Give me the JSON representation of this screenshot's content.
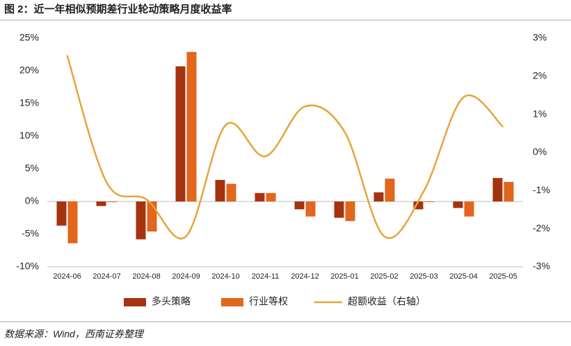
{
  "chart_data": {
    "type": "bar",
    "title": "图 2：近一年相似预期差行业轮动策略月度收益率",
    "categories": [
      "2024-06",
      "2024-07",
      "2024-08",
      "2024-09",
      "2024-10",
      "2024-11",
      "2024-12",
      "2025-01",
      "2025-02",
      "2025-03",
      "2025-04",
      "2025-05"
    ],
    "series": [
      {
        "name": "多头策略",
        "color": "#A5330F",
        "values": [
          -3.7,
          -0.7,
          -5.8,
          20.7,
          3.3,
          1.3,
          -1.2,
          -2.5,
          1.4,
          -1.2,
          -1.0,
          3.6
        ]
      },
      {
        "name": "行业等权",
        "color": "#E2661C",
        "values": [
          -6.4,
          -0.1,
          -4.6,
          22.9,
          2.7,
          1.3,
          -2.3,
          -3.0,
          3.5,
          -0.1,
          -2.3,
          3.0
        ]
      },
      {
        "name": "超额收益（右轴）",
        "color": "#E8A33A",
        "type": "line",
        "axis": "y2",
        "values": [
          2.55,
          -0.79,
          -1.23,
          -2.2,
          0.72,
          -0.1,
          1.21,
          0.54,
          -2.2,
          -1.01,
          1.45,
          0.67
        ]
      }
    ],
    "ylim": [
      -10,
      25
    ],
    "yticks": [
      {
        "value": -10,
        "label": "-10%"
      },
      {
        "value": -5,
        "label": "-5%"
      },
      {
        "value": 0,
        "label": "0%"
      },
      {
        "value": 5,
        "label": "5%"
      },
      {
        "value": 10,
        "label": "10%"
      },
      {
        "value": 15,
        "label": "15%"
      },
      {
        "value": 20,
        "label": "20%"
      },
      {
        "value": 25,
        "label": "25%"
      }
    ],
    "y2lim": [
      -3,
      3
    ],
    "y2ticks": [
      {
        "value": -3,
        "label": "-3%"
      },
      {
        "value": -2,
        "label": "-2%"
      },
      {
        "value": -1,
        "label": "-1%"
      },
      {
        "value": 0,
        "label": "0%"
      },
      {
        "value": 1,
        "label": "1%"
      },
      {
        "value": 2,
        "label": "2%"
      },
      {
        "value": 3,
        "label": "3%"
      }
    ],
    "grid": false,
    "legend": "bottom"
  },
  "source": "数据来源：Wind，西南证券整理"
}
